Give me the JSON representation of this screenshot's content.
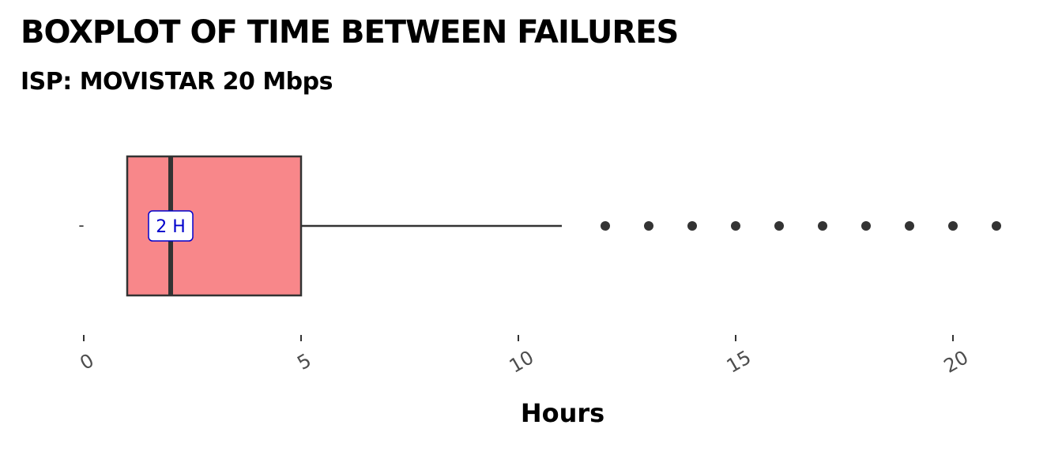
{
  "chart_data": {
    "type": "boxplot",
    "title": "BOXPLOT OF TIME BETWEEN FAILURES",
    "subtitle": "ISP: MOVISTAR 20 Mbps",
    "xlabel": "Hours",
    "ylabel": "",
    "xlim": [
      0,
      21
    ],
    "x_ticks": [
      0,
      5,
      10,
      15,
      20
    ],
    "x_tick_labels": [
      "0",
      "5",
      "10",
      "15",
      "20"
    ],
    "y_tick_labels": [
      "-"
    ],
    "box": {
      "q1": 1,
      "median": 2,
      "q3": 5,
      "whisker_low": 1,
      "whisker_high": 11,
      "outliers": [
        12,
        13,
        14,
        15,
        16,
        17,
        18,
        19,
        20,
        21
      ],
      "fill_color": "#f8878a",
      "line_color": "#333333",
      "median_label": "2 H",
      "median_label_color": "#0000cc"
    },
    "grid": false
  }
}
